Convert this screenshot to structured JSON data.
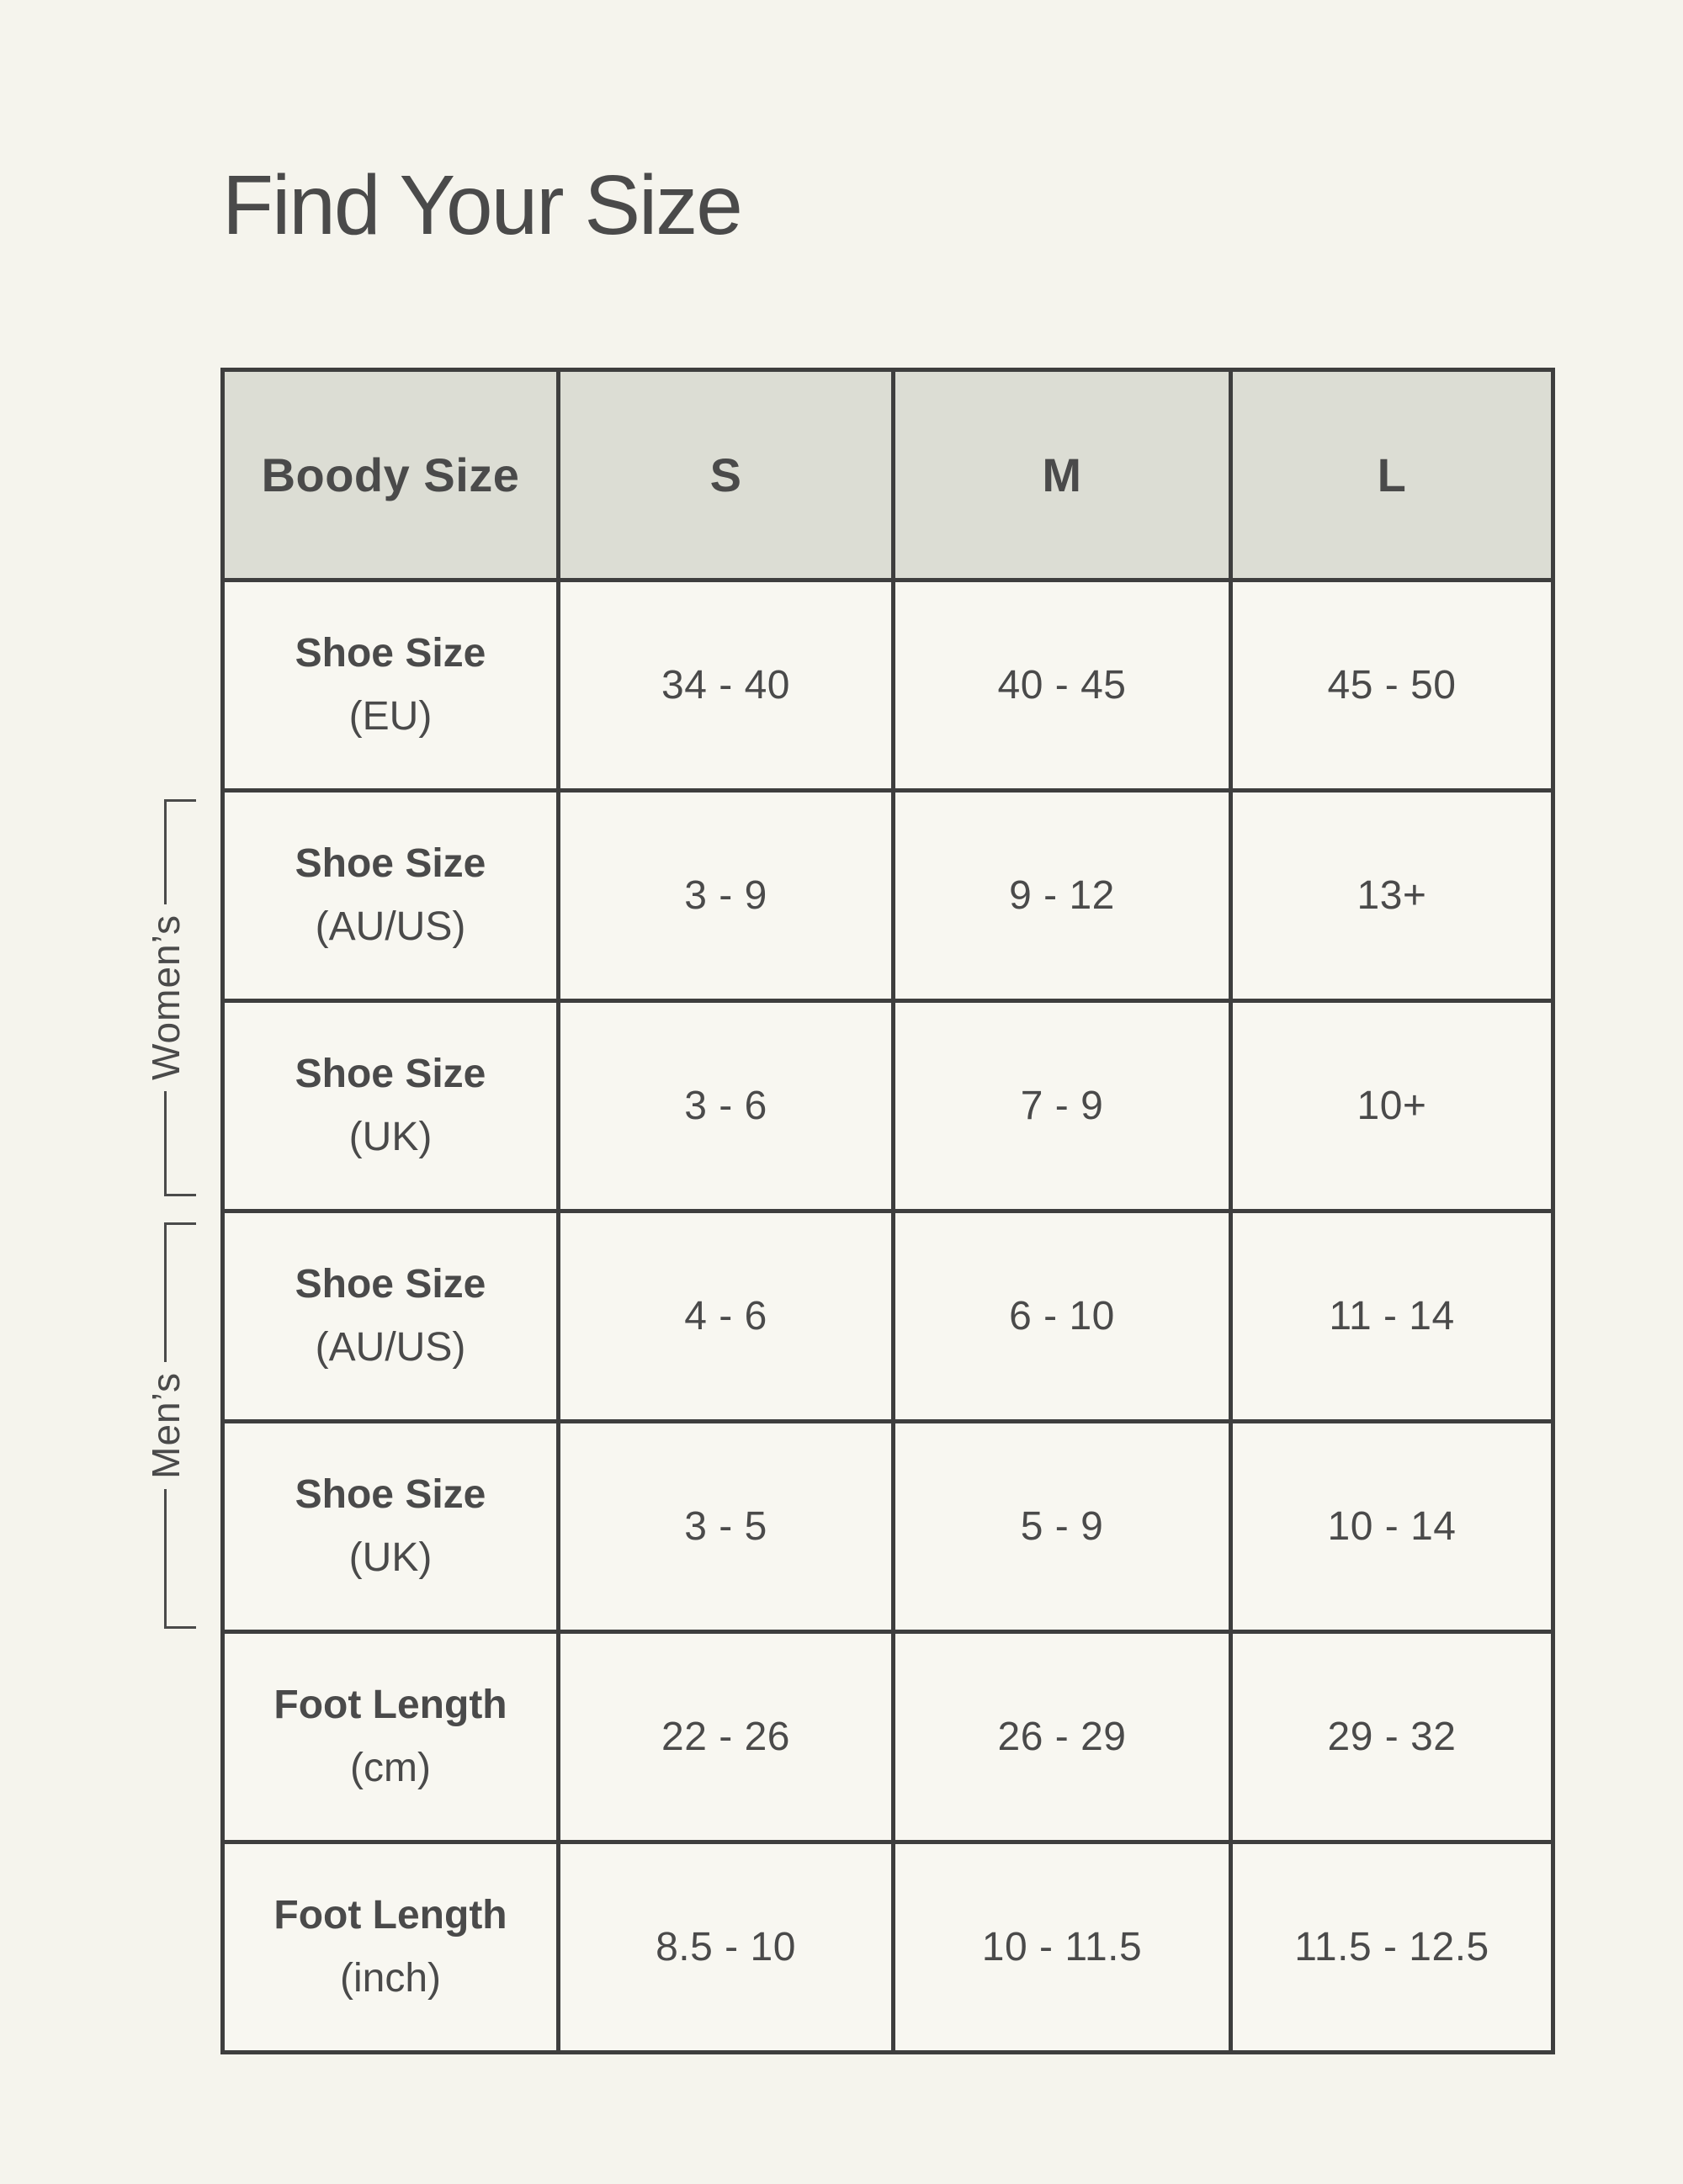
{
  "page": {
    "title": "Find Your Size"
  },
  "brackets": {
    "womens": "Women’s",
    "mens": "Men’s"
  },
  "table": {
    "header": [
      "Boody Size",
      "S",
      "M",
      "L"
    ],
    "rows": [
      {
        "group": "",
        "label": "Shoe Size",
        "unit": "(EU)",
        "values": [
          "34 - 40",
          "40 - 45",
          "45 - 50"
        ]
      },
      {
        "group": "Women’s",
        "label": "Shoe Size",
        "unit": "(AU/US)",
        "values": [
          "3 - 9",
          "9 - 12",
          "13+"
        ]
      },
      {
        "group": "Women’s",
        "label": "Shoe Size",
        "unit": "(UK)",
        "values": [
          "3 - 6",
          "7 - 9",
          "10+"
        ]
      },
      {
        "group": "Men’s",
        "label": "Shoe Size",
        "unit": "(AU/US)",
        "values": [
          "4 - 6",
          "6 - 10",
          "11 - 14"
        ]
      },
      {
        "group": "Men’s",
        "label": "Shoe Size",
        "unit": "(UK)",
        "values": [
          "3 - 5",
          "5 - 9",
          "10 - 14"
        ]
      },
      {
        "group": "",
        "label": "Foot Length",
        "unit": "(cm)",
        "values": [
          "22 - 26",
          "26 - 29",
          "29 - 32"
        ]
      },
      {
        "group": "",
        "label": "Foot Length",
        "unit": "(inch)",
        "values": [
          "8.5 - 10",
          "10 - 11.5",
          "11.5 - 12.5"
        ]
      }
    ]
  },
  "colors": {
    "page_background": "#f5f4ed",
    "cell_background": "#f8f7f1",
    "header_background": "#dcddd4",
    "border": "#3e3e3e",
    "text": "#4a4a4a"
  },
  "chart_data": {
    "type": "table",
    "title": "Find Your Size",
    "columns": [
      "Boody Size",
      "S",
      "M",
      "L"
    ],
    "rows": [
      [
        "Shoe Size (EU)",
        "34 - 40",
        "40 - 45",
        "45 - 50"
      ],
      [
        "Women’s Shoe Size (AU/US)",
        "3 - 9",
        "9 - 12",
        "13+"
      ],
      [
        "Women’s Shoe Size (UK)",
        "3 - 6",
        "7 - 9",
        "10+"
      ],
      [
        "Men’s Shoe Size (AU/US)",
        "4 - 6",
        "6 - 10",
        "11 - 14"
      ],
      [
        "Men’s Shoe Size (UK)",
        "3 - 5",
        "5 - 9",
        "10 - 14"
      ],
      [
        "Foot Length (cm)",
        "22 - 26",
        "26 - 29",
        "29 - 32"
      ],
      [
        "Foot Length (inch)",
        "8.5 - 10",
        "10 - 11.5",
        "11.5 - 12.5"
      ]
    ]
  }
}
